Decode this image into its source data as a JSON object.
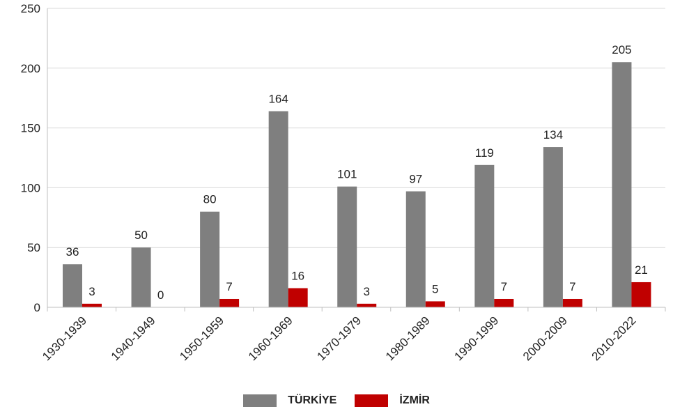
{
  "chart_data": {
    "type": "bar",
    "categories": [
      "1930-1939",
      "1940-1949",
      "1950-1959",
      "1960-1969",
      "1970-1979",
      "1980-1989",
      "1990-1999",
      "2000-2009",
      "2010-2022"
    ],
    "series": [
      {
        "name": "TÜRKİYE",
        "color": "#7f7f7f",
        "values": [
          36,
          50,
          80,
          164,
          101,
          97,
          119,
          134,
          205
        ]
      },
      {
        "name": "İZMİR",
        "color": "#c00000",
        "values": [
          3,
          0,
          7,
          16,
          3,
          5,
          7,
          7,
          21
        ]
      }
    ],
    "ylim": [
      0,
      250
    ],
    "yticks": [
      0,
      50,
      100,
      150,
      200,
      250
    ],
    "grid": true,
    "legend_position": "bottom",
    "data_labels": true
  }
}
